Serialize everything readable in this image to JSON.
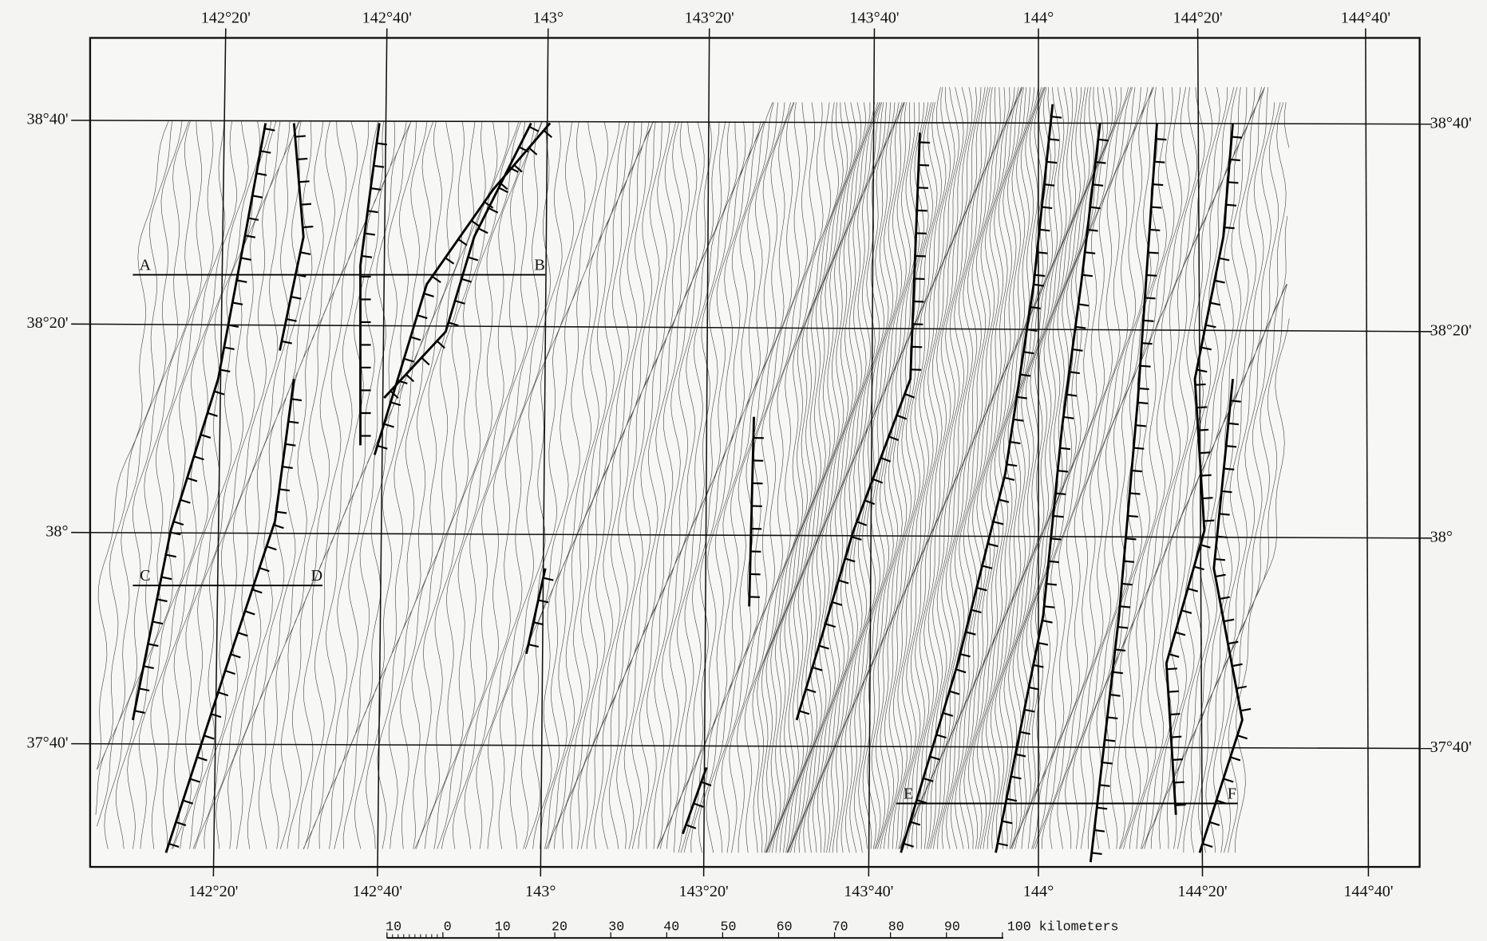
{
  "longitude_labels_top": [
    "142°20'",
    "142°40'",
    "143°",
    "143°20'",
    "143°40'",
    "144°",
    "144°20'",
    "144°40'"
  ],
  "longitude_labels_bottom": [
    "142°20'",
    "142°40'",
    "143°",
    "143°20'",
    "143°40'",
    "144°",
    "144°20'",
    "144°40'"
  ],
  "latitude_labels_left": [
    "38°40'",
    "38°20'",
    "38°",
    "37°40'"
  ],
  "latitude_labels_right": [
    "38°40'",
    "38°20'",
    "38°",
    "37°40'"
  ],
  "profiles": [
    {
      "start": "A",
      "end": "B"
    },
    {
      "start": "C",
      "end": "D"
    },
    {
      "start": "E",
      "end": "F"
    }
  ],
  "scale_bar": {
    "labels": [
      "10",
      "0",
      "10",
      "20",
      "30",
      "40",
      "50",
      "60",
      "70",
      "80",
      "90",
      "100 kilometers"
    ]
  }
}
